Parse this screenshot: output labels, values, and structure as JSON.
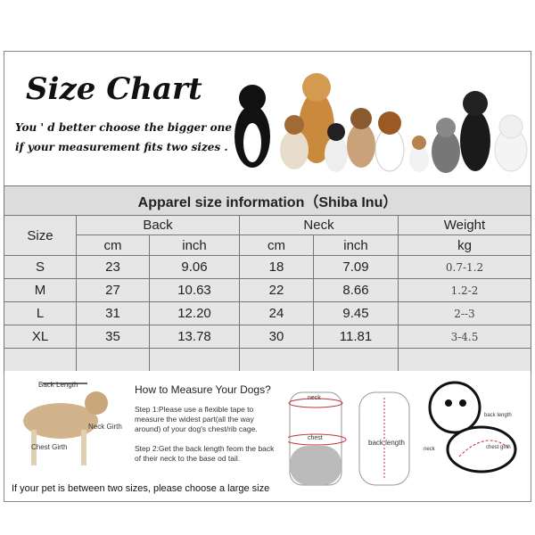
{
  "header": {
    "title": "Size Chart",
    "subtitle_line1": "You ' d better choose the bigger one",
    "subtitle_line2": "if your measurement fits two sizes ."
  },
  "table": {
    "title": "Apparel  size  information（Shiba Inu）",
    "size_label": "Size",
    "groups": [
      "Back",
      "Neck",
      "Weight"
    ],
    "units": [
      "cm",
      "inch",
      "cm",
      "inch",
      "kg"
    ],
    "rows": [
      {
        "size": "S",
        "back_cm": "23",
        "back_inch": "9.06",
        "neck_cm": "18",
        "neck_inch": "7.09",
        "weight_kg": "0.7-1.2"
      },
      {
        "size": "M",
        "back_cm": "27",
        "back_inch": "10.63",
        "neck_cm": "22",
        "neck_inch": "8.66",
        "weight_kg": "1.2-2"
      },
      {
        "size": "L",
        "back_cm": "31",
        "back_inch": "12.20",
        "neck_cm": "24",
        "neck_inch": "9.45",
        "weight_kg": "2--3"
      },
      {
        "size": "XL",
        "back_cm": "35",
        "back_inch": "13.78",
        "neck_cm": "30",
        "neck_inch": "11.81",
        "weight_kg": "3-4.5"
      }
    ]
  },
  "measure": {
    "dog_labels": {
      "back": "Back Length",
      "neck": "Neck Girth",
      "chest": "Chest Girth"
    },
    "heading": "How to Measure Your Dogs?",
    "step1": "Step 1:Please use a flexible tape to measure the widest part(all the way around) of your dog's chest/rib cage.",
    "step2": "Step 2:Get the back length feom the back of their neck to the base od tail.",
    "garment_labels": {
      "neck": "neck",
      "chest": "chest",
      "back": "back length"
    },
    "puppy_labels": {
      "back": "back length",
      "neck": "neck",
      "chest": "chest girth"
    },
    "note": "If your pet is between two sizes, please choose a large size"
  },
  "colors": {
    "table_bg": "#e6e6e6",
    "measure_red": "#c0303a"
  }
}
